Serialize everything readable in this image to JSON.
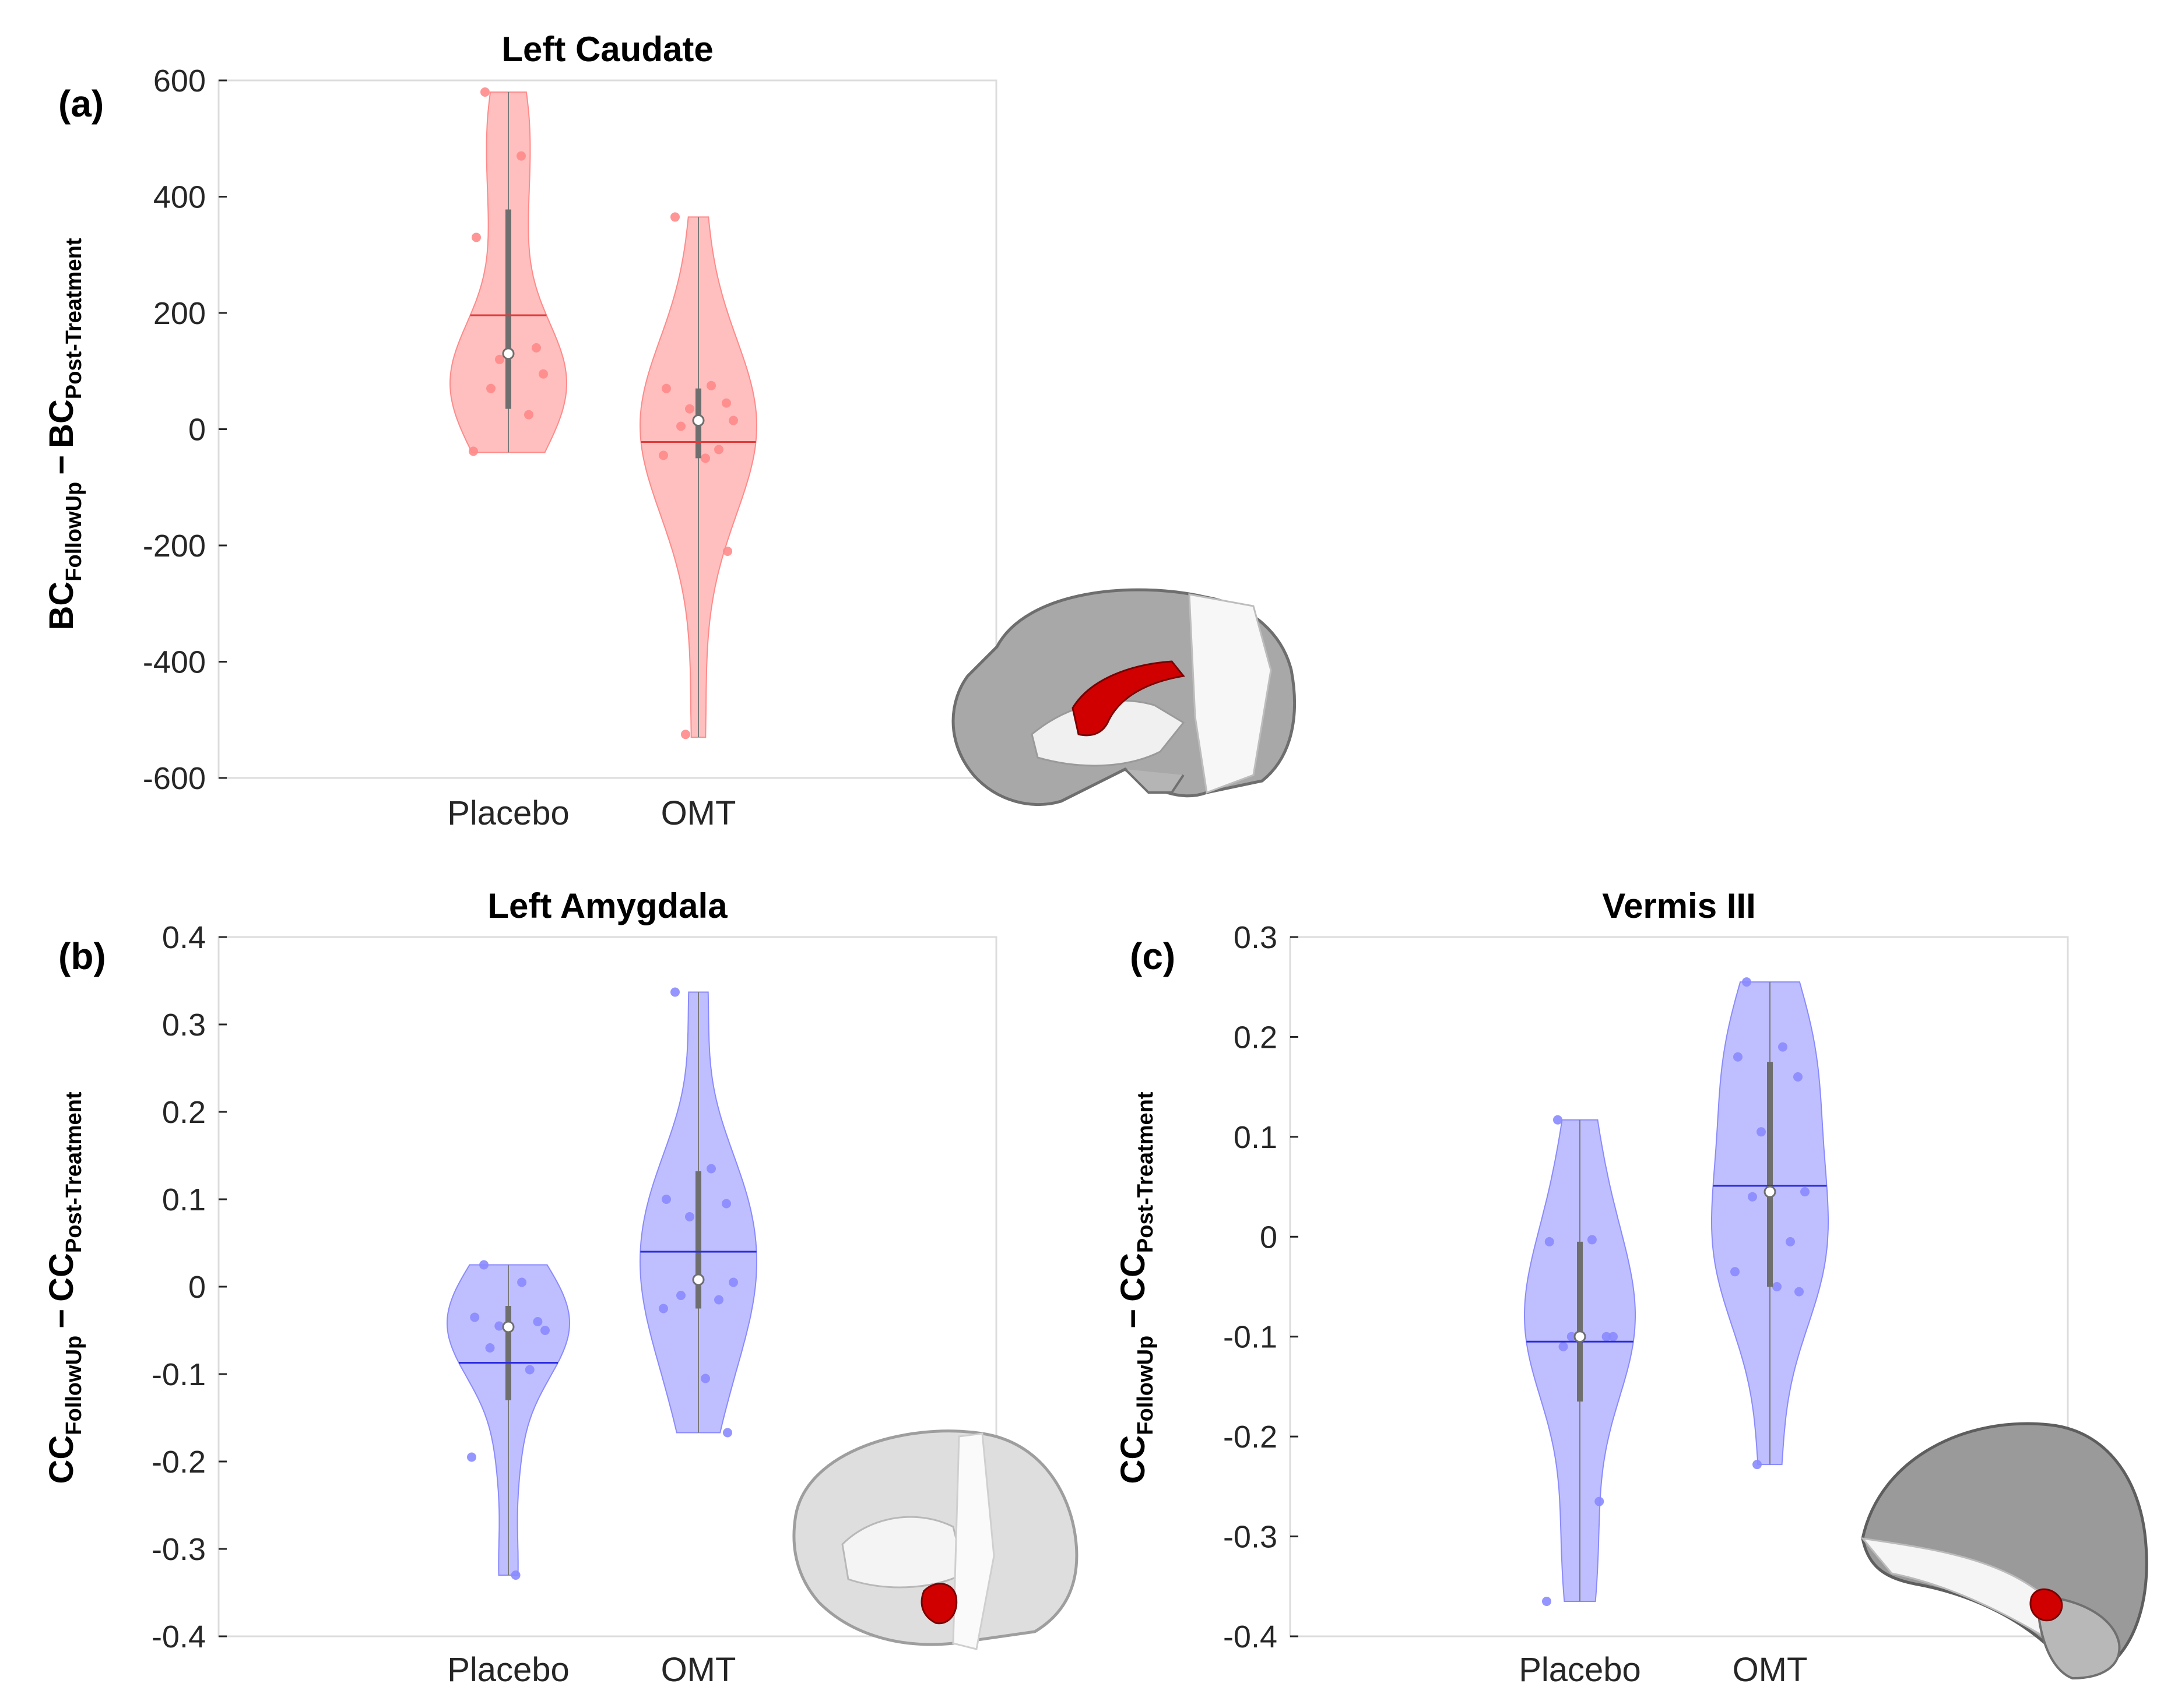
{
  "chart_data": [
    {
      "type": "violin",
      "panel_label": "(a)",
      "title": "Left Caudate",
      "ylabel": {
        "main_1": "BC",
        "sub_1": "FollowUp",
        "operator": "−",
        "main_2": "BC",
        "sub_2": "Post-Treatment"
      },
      "categories": [
        "Placebo",
        "OMT"
      ],
      "ylim": [
        -600,
        600
      ],
      "yticks": [
        -600,
        -400,
        -200,
        0,
        200,
        400,
        600
      ],
      "ytick_labels": [
        "-600",
        "-400",
        "-200",
        "0",
        "200",
        "400",
        "600"
      ],
      "color": "#ff8a8a",
      "mean_color": "#e23a3a",
      "series": [
        {
          "name": "Placebo",
          "mean": 196,
          "median": 130,
          "q1": 35,
          "q3": 378,
          "min": -40,
          "max": 580,
          "points": [
            580,
            470,
            330,
            140,
            120,
            95,
            70,
            25,
            -38
          ]
        },
        {
          "name": "OMT",
          "mean": -22,
          "median": 15,
          "q1": -50,
          "q3": 70,
          "min": -530,
          "max": 365,
          "points": [
            365,
            75,
            70,
            45,
            35,
            15,
            5,
            -35,
            -45,
            -50,
            -210,
            -525
          ]
        }
      ]
    },
    {
      "type": "violin",
      "panel_label": "(b)",
      "title": "Left Amygdala",
      "ylabel": {
        "main_1": "CC",
        "sub_1": "FollowUp",
        "operator": "−",
        "main_2": "CC",
        "sub_2": "Post-Treatment"
      },
      "categories": [
        "Placebo",
        "OMT"
      ],
      "ylim": [
        -0.4,
        0.4
      ],
      "yticks": [
        -0.4,
        -0.3,
        -0.2,
        -0.1,
        0,
        0.1,
        0.2,
        0.3,
        0.4
      ],
      "ytick_labels": [
        "-0.4",
        "-0.3",
        "-0.2",
        "-0.1",
        "0",
        "0.1",
        "0.2",
        "0.3",
        "0.4"
      ],
      "color": "#8a8aff",
      "mean_color": "#2a2ae0",
      "series": [
        {
          "name": "Placebo",
          "mean": -0.087,
          "median": -0.046,
          "q1": -0.13,
          "q3": -0.022,
          "min": -0.33,
          "max": 0.025,
          "points": [
            0.025,
            0.005,
            -0.035,
            -0.04,
            -0.045,
            -0.05,
            -0.07,
            -0.095,
            -0.195,
            -0.33
          ]
        },
        {
          "name": "OMT",
          "mean": 0.04,
          "median": 0.008,
          "q1": -0.025,
          "q3": 0.132,
          "min": -0.167,
          "max": 0.337,
          "points": [
            0.337,
            0.135,
            0.1,
            0.095,
            0.08,
            0.005,
            -0.01,
            -0.015,
            -0.025,
            -0.105,
            -0.167
          ]
        }
      ]
    },
    {
      "type": "violin",
      "panel_label": "(c)",
      "title": "Vermis III",
      "ylabel": {
        "main_1": "CC",
        "sub_1": "FollowUp",
        "operator": "−",
        "main_2": "CC",
        "sub_2": "Post-Treatment"
      },
      "categories": [
        "Placebo",
        "OMT"
      ],
      "ylim": [
        -0.4,
        0.3
      ],
      "yticks": [
        -0.4,
        -0.3,
        -0.2,
        -0.1,
        0,
        0.1,
        0.2,
        0.3
      ],
      "ytick_labels": [
        "-0.4",
        "-0.3",
        "-0.2",
        "-0.1",
        "0",
        "0.1",
        "0.2",
        "0.3"
      ],
      "color": "#8a8aff",
      "mean_color": "#2a2ae0",
      "series": [
        {
          "name": "Placebo",
          "mean": -0.105,
          "median": -0.1,
          "q1": -0.165,
          "q3": -0.005,
          "min": -0.365,
          "max": 0.117,
          "points": [
            0.117,
            -0.003,
            -0.005,
            -0.1,
            -0.1,
            -0.1,
            -0.11,
            -0.265,
            -0.365
          ]
        },
        {
          "name": "OMT",
          "mean": 0.051,
          "median": 0.045,
          "q1": -0.05,
          "q3": 0.175,
          "min": -0.228,
          "max": 0.255,
          "points": [
            0.255,
            0.19,
            0.18,
            0.16,
            0.105,
            0.045,
            0.04,
            -0.005,
            -0.035,
            -0.05,
            -0.055,
            -0.228
          ]
        }
      ]
    }
  ]
}
